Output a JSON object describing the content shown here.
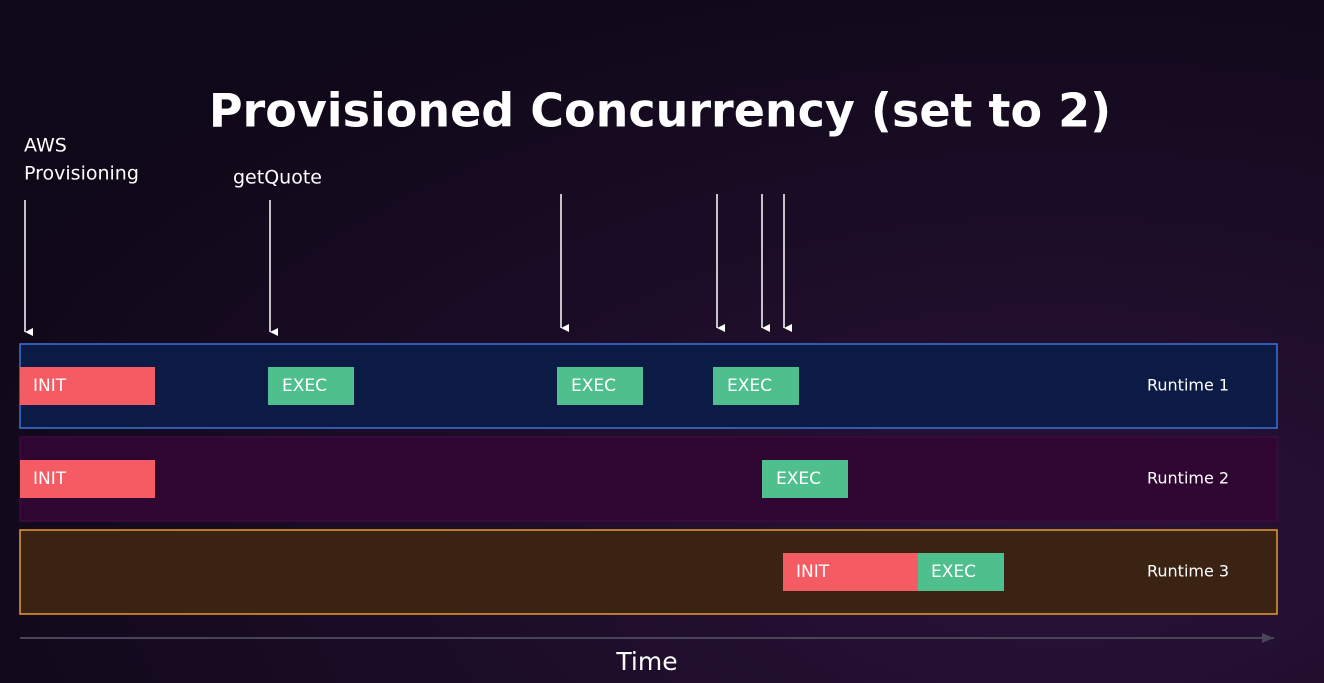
{
  "title": "Provisioned Concurrency (set to 2)",
  "annotations": [
    {
      "lines": [
        "AWS",
        "Provisioning"
      ]
    },
    {
      "lines": [
        "getQuote"
      ]
    }
  ],
  "lanes": [
    {
      "label": "Runtime 1",
      "blocks": [
        "INIT",
        "EXEC",
        "EXEC",
        "EXEC"
      ]
    },
    {
      "label": "Runtime 2",
      "blocks": [
        "INIT",
        "EXEC"
      ]
    },
    {
      "label": "Runtime 3",
      "blocks": [
        "INIT",
        "EXEC"
      ]
    }
  ],
  "axis_label": "Time"
}
